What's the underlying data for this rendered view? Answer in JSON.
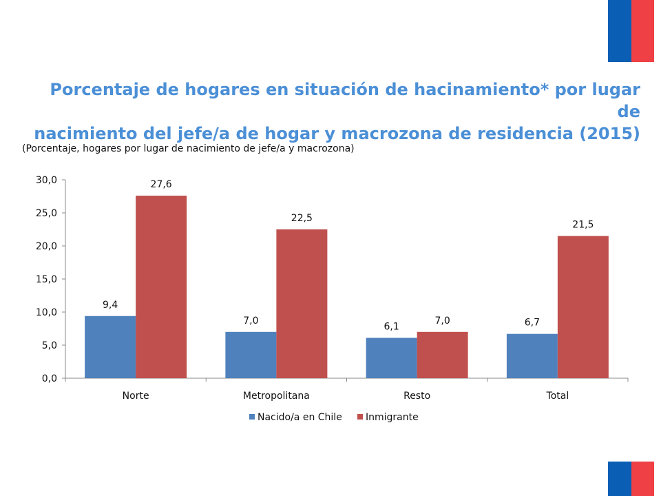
{
  "header": {
    "title_line1": "Porcentaje de hogares en situación de hacinamiento* por lugar de",
    "title_line2": "nacimiento del jefe/a de hogar y macrozona de residencia (2015)",
    "subtitle": "(Porcentaje, hogares por lugar de nacimiento de jefe/a y macrozona)"
  },
  "colors": {
    "title": "#4b8fd6",
    "flag_blue": "#0a5fb4",
    "flag_red": "#ef4045"
  },
  "chart_data": {
    "type": "bar",
    "categories": [
      "Norte",
      "Metropolitana",
      "Resto",
      "Total"
    ],
    "series": [
      {
        "name": "Nacido/a en Chile",
        "color": "#4f81bd",
        "values": [
          9.4,
          7.0,
          6.1,
          6.7
        ],
        "labels": [
          "9,4",
          "7,0",
          "6,1",
          "6,7"
        ]
      },
      {
        "name": "Inmigrante",
        "color": "#c0504d",
        "values": [
          27.6,
          22.5,
          7.0,
          21.5
        ],
        "labels": [
          "27,6",
          "22,5",
          "7,0",
          "21,5"
        ]
      }
    ],
    "yticks": [
      0,
      5,
      10,
      15,
      20,
      25,
      30
    ],
    "ytick_labels": [
      "0,0",
      "5,0",
      "10,0",
      "15,0",
      "20,0",
      "25,0",
      "30,0"
    ],
    "ylim": [
      0,
      30
    ],
    "grid": false,
    "legend_position": "bottom"
  }
}
